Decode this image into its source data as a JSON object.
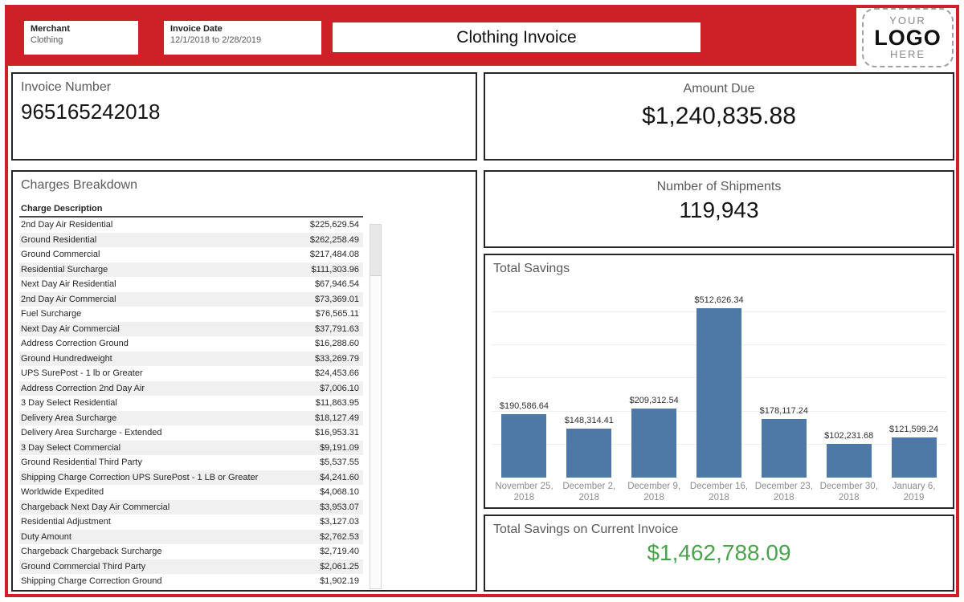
{
  "header": {
    "merchant_label": "Merchant",
    "merchant_value": "Clothing",
    "invoice_date_label": "Invoice Date",
    "invoice_date_value": "12/1/2018 to 2/28/2019",
    "title": "Clothing Invoice",
    "logo_line1": "YOUR",
    "logo_line2": "LOGO",
    "logo_line3": "HERE"
  },
  "panels": {
    "invoice_number": {
      "label": "Invoice Number",
      "value": "965165242018"
    },
    "amount_due": {
      "label": "Amount Due",
      "value": "$1,240,835.88"
    },
    "shipments": {
      "label": "Number of Shipments",
      "value": "119,943"
    },
    "charges": {
      "title": "Charges Breakdown",
      "column_header": "Charge Description",
      "rows": [
        {
          "description": "2nd Day Air Residential",
          "amount": "$225,629.54"
        },
        {
          "description": "Ground Residential",
          "amount": "$262,258.49"
        },
        {
          "description": "Ground Commercial",
          "amount": "$217,484.08"
        },
        {
          "description": "Residential Surcharge",
          "amount": "$111,303.96"
        },
        {
          "description": "Next Day Air Residential",
          "amount": "$67,946.54"
        },
        {
          "description": "2nd Day Air Commercial",
          "amount": "$73,369.01"
        },
        {
          "description": "Fuel Surcharge",
          "amount": "$76,565.11"
        },
        {
          "description": "Next Day Air Commercial",
          "amount": "$37,791.63"
        },
        {
          "description": "Address Correction Ground",
          "amount": "$16,288.60"
        },
        {
          "description": "Ground Hundredweight",
          "amount": "$33,269.79"
        },
        {
          "description": "UPS SurePost - 1 lb or Greater",
          "amount": "$24,453.66"
        },
        {
          "description": "Address Correction 2nd Day Air",
          "amount": "$7,006.10"
        },
        {
          "description": "3 Day Select Residential",
          "amount": "$11,863.95"
        },
        {
          "description": "Delivery Area Surcharge",
          "amount": "$18,127.49"
        },
        {
          "description": "Delivery Area Surcharge - Extended",
          "amount": "$16,953.31"
        },
        {
          "description": "3 Day Select Commercial",
          "amount": "$9,191.09"
        },
        {
          "description": "Ground Residential Third Party",
          "amount": "$5,537.55"
        },
        {
          "description": "Shipping Charge Correction UPS SurePost - 1 LB or Greater",
          "amount": "$4,241.60"
        },
        {
          "description": "Worldwide Expedited",
          "amount": "$4,068.10"
        },
        {
          "description": "Chargeback Next Day Air Commercial",
          "amount": "$3,953.07"
        },
        {
          "description": "Residential Adjustment",
          "amount": "$3,127.03"
        },
        {
          "description": "Duty Amount",
          "amount": "$2,762.53"
        },
        {
          "description": "Chargeback Chargeback Surcharge",
          "amount": "$2,719.40"
        },
        {
          "description": "Ground Commercial Third Party",
          "amount": "$2,061.25"
        },
        {
          "description": "Shipping Charge Correction Ground",
          "amount": "$1,902.19"
        }
      ]
    },
    "total_savings_current": {
      "label": "Total Savings on Current Invoice",
      "value": "$1,462,788.09"
    }
  },
  "chart_data": {
    "type": "bar",
    "title": "Total Savings",
    "categories": [
      "November 25, 2018",
      "December 2, 2018",
      "December 9, 2018",
      "December 16, 2018",
      "December 23, 2018",
      "December 30, 2018",
      "January 6, 2019"
    ],
    "values": [
      190586.64,
      148314.41,
      209312.54,
      512626.34,
      178117.24,
      102231.68,
      121599.24
    ],
    "value_labels": [
      "$190,586.64",
      "$148,314.41",
      "$209,312.54",
      "$512,626.34",
      "$178,117.24",
      "$102,231.68",
      "$121,599.24"
    ],
    "xlabel": "",
    "ylabel": "",
    "ylim": [
      0,
      550000
    ],
    "gridline_interval": 100000,
    "grid": true,
    "legend": "none",
    "bar_color": "#4e79a7"
  },
  "colors": {
    "accent_red": "#cd2027",
    "bar_blue": "#4e79a7",
    "savings_green": "#4aa34c",
    "row_alt": "#f0f0f0"
  }
}
